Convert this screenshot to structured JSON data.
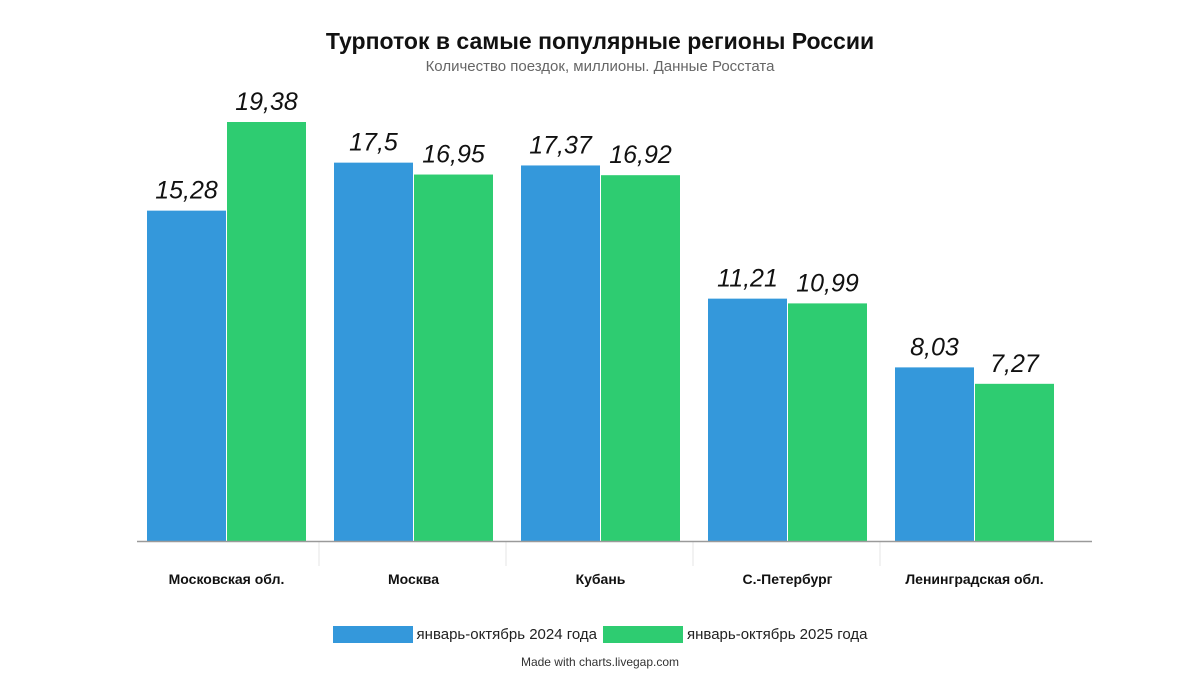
{
  "chart_data": {
    "type": "bar",
    "title": "Турпоток в самые популярные регионы России",
    "subtitle": "Количество поездок, миллионы. Данные Росстата",
    "categories": [
      "Московская обл.",
      "Москва",
      "Кубань",
      "С.-Петербург",
      "Ленинградская обл."
    ],
    "series": [
      {
        "name": "январь-октябрь 2024 года",
        "color": "#3498db",
        "values": [
          15.28,
          17.5,
          17.37,
          11.21,
          8.03
        ],
        "labels": [
          "15,28",
          "17,5",
          "17,37",
          "11,21",
          "8,03"
        ]
      },
      {
        "name": "январь-октябрь 2025 года",
        "color": "#2ecc71",
        "values": [
          19.38,
          16.95,
          16.92,
          10.99,
          7.27
        ],
        "labels": [
          "19,38",
          "16,95",
          "16,92",
          "10,99",
          "7,27"
        ]
      }
    ],
    "xlabel": "",
    "ylabel": "",
    "ylim": [
      0,
      19.38
    ],
    "grid": false,
    "legend": "bottom"
  },
  "footer": {
    "credit": "Made with charts.livegap.com"
  }
}
